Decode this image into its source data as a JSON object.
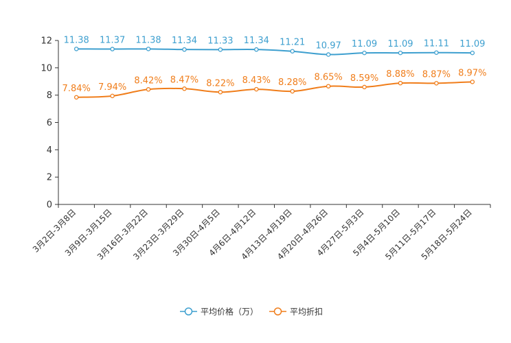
{
  "chart_data": {
    "type": "line",
    "title": "",
    "xlabel": "",
    "ylabel": "",
    "ylim": [
      0,
      12
    ],
    "yticks": [
      0,
      2,
      4,
      6,
      8,
      10,
      12
    ],
    "grid": false,
    "legend_position": "bottom-center",
    "categories": [
      "3月2日-3月8日",
      "3月9日-3月15日",
      "3月16日-3月22日",
      "3月23日-3月29日",
      "3月30日-4月5日",
      "4月6日-4月12日",
      "4月13日-4月19日",
      "4月20日-4月26日",
      "4月27日-5月3日",
      "5月4日-5月10日",
      "5月11日-5月17日",
      "5月18日-5月24日"
    ],
    "series": [
      {
        "name": "平均价格（万）",
        "color": "#3d9fcf",
        "values": [
          11.38,
          11.37,
          11.38,
          11.34,
          11.33,
          11.34,
          11.21,
          10.97,
          11.09,
          11.09,
          11.11,
          11.09
        ],
        "labels": [
          "11.38",
          "11.37",
          "11.38",
          "11.34",
          "11.33",
          "11.34",
          "11.21",
          "10.97",
          "11.09",
          "11.09",
          "11.11",
          "11.09"
        ]
      },
      {
        "name": "平均折扣",
        "color": "#f07d1a",
        "values": [
          7.84,
          7.94,
          8.42,
          8.47,
          8.22,
          8.43,
          8.28,
          8.65,
          8.59,
          8.88,
          8.87,
          8.97
        ],
        "labels": [
          "7.84%",
          "7.94%",
          "8.42%",
          "8.47%",
          "8.22%",
          "8.43%",
          "8.28%",
          "8.65%",
          "8.59%",
          "8.88%",
          "8.87%",
          "8.97%"
        ]
      }
    ]
  }
}
